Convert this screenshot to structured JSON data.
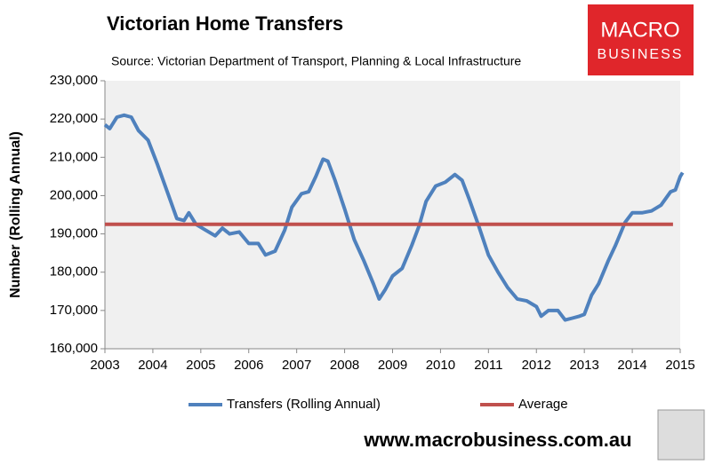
{
  "chart_data": {
    "type": "line",
    "title": "Victorian Home Transfers",
    "subtitle": "Source: Victorian Department of Transport, Planning & Local Infrastructure",
    "ylabel": "Number (Rolling Annual)",
    "logo": [
      "MACRO",
      "BUSINESS"
    ],
    "footer": "www.macrobusiness.com.au",
    "xlim": [
      2003,
      2015
    ],
    "xticks": [
      2003,
      2004,
      2005,
      2006,
      2007,
      2008,
      2009,
      2010,
      2011,
      2012,
      2013,
      2014,
      2015
    ],
    "ylim": [
      160000,
      230000
    ],
    "yticks": [
      {
        "value": 160000,
        "label": "160,000"
      },
      {
        "value": 170000,
        "label": "170,000"
      },
      {
        "value": 180000,
        "label": "180,000"
      },
      {
        "value": 190000,
        "label": "190,000"
      },
      {
        "value": 200000,
        "label": "200,000"
      },
      {
        "value": 210000,
        "label": "210,000"
      },
      {
        "value": 220000,
        "label": "220,000"
      },
      {
        "value": 230000,
        "label": "230,000"
      }
    ],
    "series": [
      {
        "name": "Transfers (Rolling Annual)",
        "color": "#4f81bd",
        "x": [
          2003.0,
          2003.1,
          2003.25,
          2003.4,
          2003.55,
          2003.7,
          2003.9,
          2004.1,
          2004.3,
          2004.5,
          2004.65,
          2004.75,
          2004.9,
          2005.1,
          2005.3,
          2005.45,
          2005.6,
          2005.8,
          2006.0,
          2006.2,
          2006.35,
          2006.55,
          2006.75,
          2006.9,
          2007.1,
          2007.25,
          2007.4,
          2007.55,
          2007.65,
          2007.8,
          2008.0,
          2008.2,
          2008.4,
          2008.6,
          2008.72,
          2008.85,
          2009.0,
          2009.2,
          2009.4,
          2009.55,
          2009.7,
          2009.9,
          2010.1,
          2010.3,
          2010.45,
          2010.6,
          2010.8,
          2011.0,
          2011.2,
          2011.4,
          2011.6,
          2011.8,
          2012.0,
          2012.1,
          2012.25,
          2012.45,
          2012.6,
          2012.75,
          2012.9,
          2013.0,
          2013.15,
          2013.3,
          2013.5,
          2013.65,
          2013.85,
          2014.0,
          2014.2,
          2014.4,
          2014.6,
          2014.8,
          2014.9,
          2015.0,
          2015.05
        ],
        "values": [
          218500,
          217500,
          220500,
          221000,
          220500,
          217000,
          214500,
          208000,
          201000,
          194000,
          193500,
          195500,
          192500,
          191000,
          189500,
          191500,
          190000,
          190500,
          187500,
          187500,
          184500,
          185500,
          191000,
          197000,
          200500,
          201000,
          205000,
          209500,
          209000,
          204000,
          196500,
          188500,
          183000,
          177000,
          173000,
          175500,
          179000,
          181000,
          187000,
          192000,
          198500,
          202500,
          203500,
          205500,
          204000,
          199000,
          192000,
          184500,
          180000,
          176000,
          173000,
          172500,
          171000,
          168500,
          170000,
          170000,
          167500,
          168000,
          168500,
          169000,
          174000,
          177000,
          183000,
          187000,
          193000,
          195500,
          195500,
          196000,
          197500,
          201000,
          201500,
          205000,
          206000
        ]
      },
      {
        "name": "Average",
        "color": "#c0504d",
        "x": [
          2003.0,
          2014.85
        ],
        "values": [
          192500,
          192500
        ]
      }
    ]
  }
}
